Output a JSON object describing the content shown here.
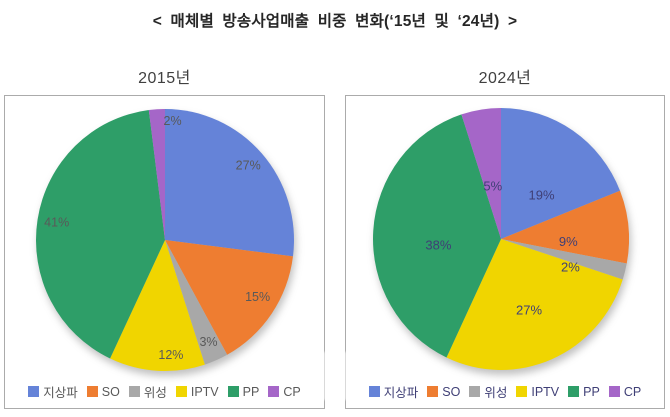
{
  "title": "< 매체별 방송사업매출 비중 변화(‘15년 및 ‘24년) >",
  "chart_data": [
    {
      "type": "pie",
      "title": "2015년",
      "categories": [
        "지상파",
        "SO",
        "위성",
        "IPTV",
        "PP",
        "CP"
      ],
      "values": [
        27,
        15,
        3,
        12,
        41,
        2
      ],
      "unit": "%",
      "colors": [
        "#6583d8",
        "#ee7d31",
        "#a8a8a8",
        "#f0d500",
        "#2e9e68",
        "#a566c8"
      ],
      "label_color": "#595959",
      "legend_text_color": "#595959",
      "start_angle_deg": 0,
      "direction": "clockwise",
      "legend_position": "bottom",
      "data_labels": [
        "27%",
        "15%",
        "3%",
        "12%",
        "41%",
        "2%"
      ]
    },
    {
      "type": "pie",
      "title": "2024년",
      "categories": [
        "지상파",
        "SO",
        "위성",
        "IPTV",
        "PP",
        "CP"
      ],
      "values": [
        19,
        9,
        2,
        27,
        38,
        5
      ],
      "unit": "%",
      "colors": [
        "#6583d8",
        "#ee7d31",
        "#a8a8a8",
        "#f0d500",
        "#2e9e68",
        "#a566c8"
      ],
      "label_color": "#3f3f76",
      "legend_text_color": "#3f3f76",
      "start_angle_deg": 0,
      "direction": "clockwise",
      "legend_position": "bottom",
      "data_labels": [
        "19%",
        "9%",
        "2%",
        "27%",
        "38%",
        "5%"
      ]
    }
  ]
}
